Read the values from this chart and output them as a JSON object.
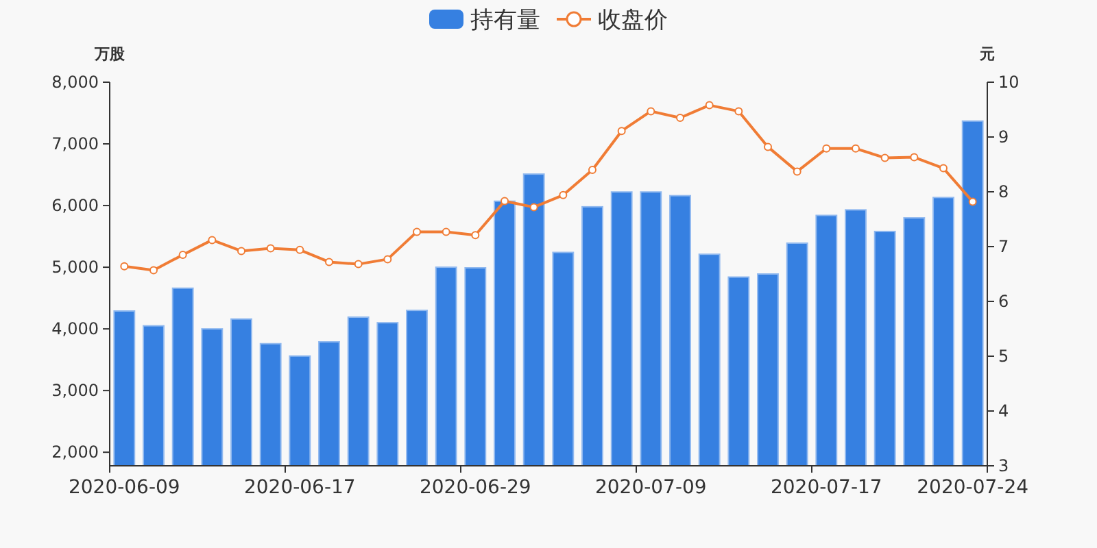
{
  "chart_data": {
    "type": "bar",
    "categories": [
      "2020-06-09",
      null,
      null,
      null,
      null,
      null,
      "2020-06-17",
      null,
      null,
      null,
      null,
      null,
      "2020-06-29",
      null,
      null,
      null,
      null,
      null,
      "2020-07-09",
      null,
      null,
      null,
      null,
      null,
      "2020-07-17",
      null,
      null,
      null,
      null,
      "2020-07-24"
    ],
    "series": [
      {
        "name": "持有量",
        "color": "#3680e1",
        "values": [
          4290,
          4050,
          4660,
          4000,
          4160,
          3760,
          3560,
          3790,
          4190,
          4100,
          4300,
          5000,
          4990,
          6070,
          6510,
          5240,
          5980,
          6220,
          6220,
          6160,
          5210,
          4840,
          4890,
          5390,
          5840,
          5930,
          5580,
          5800,
          6130,
          7370
        ]
      },
      {
        "name": "收盘价",
        "type": "line",
        "axis": "y2",
        "color": "#f07c35",
        "values": [
          6.64,
          6.57,
          6.85,
          7.12,
          6.92,
          6.97,
          6.94,
          6.72,
          6.68,
          6.77,
          7.27,
          7.27,
          7.21,
          7.83,
          7.72,
          7.94,
          8.4,
          9.11,
          9.47,
          9.35,
          9.58,
          9.47,
          8.82,
          8.37,
          8.79,
          8.79,
          8.62,
          8.63,
          8.43,
          7.82
        ]
      }
    ],
    "ylabel": "万股",
    "y2label": "元",
    "ylim": [
      1780,
      8000
    ],
    "yticks": [
      {
        "value": 2000,
        "label": "2,000"
      },
      {
        "value": 3000,
        "label": "3,000"
      },
      {
        "value": 4000,
        "label": "4,000"
      },
      {
        "value": 5000,
        "label": "5,000"
      },
      {
        "value": 6000,
        "label": "6,000"
      },
      {
        "value": 7000,
        "label": "7,000"
      },
      {
        "value": 8000,
        "label": "8,000"
      }
    ],
    "y2lim": [
      3,
      10
    ],
    "y2ticks": [
      3,
      4,
      5,
      6,
      7,
      8,
      9,
      10
    ],
    "legend": "top",
    "marker": "circle",
    "grid": false
  }
}
